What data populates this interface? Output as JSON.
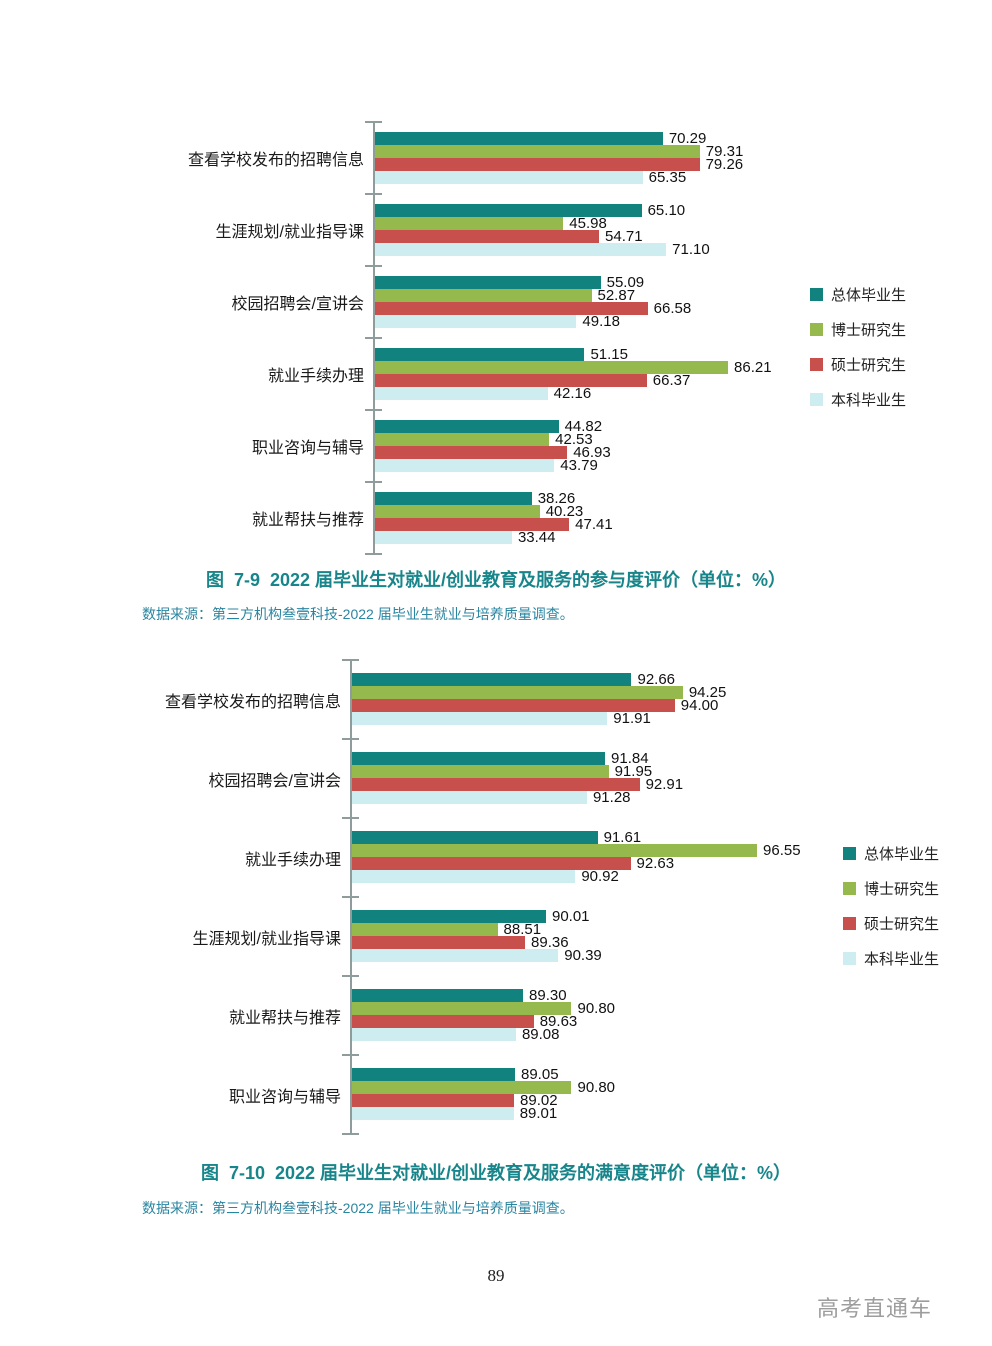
{
  "page": {
    "number": "89",
    "watermark": "高考直通车",
    "background": "#ffffff"
  },
  "chart_data": [
    {
      "type": "bar",
      "orientation": "horizontal",
      "title": "图  7-9  2022 届毕业生对就业/创业教育及服务的参与度评价（单位：%）",
      "source": "数据来源：第三方机构叁壹科技-2022 届毕业生就业与培养质量调查。",
      "categories": [
        "查看学校发布的招聘信息",
        "生涯规划/就业指导课",
        "校园招聘会/宣讲会",
        "就业手续办理",
        "职业咨询与辅导",
        "就业帮扶与推荐"
      ],
      "series": [
        {
          "name": "总体毕业生",
          "color": "#12827E",
          "values": [
            70.29,
            65.1,
            55.09,
            51.15,
            44.82,
            38.26
          ]
        },
        {
          "name": "博士研究生",
          "color": "#95B94D",
          "values": [
            79.31,
            45.98,
            52.87,
            86.21,
            42.53,
            40.23
          ]
        },
        {
          "name": "硕士研究生",
          "color": "#C8504C",
          "values": [
            79.26,
            54.71,
            66.58,
            66.37,
            46.93,
            47.41
          ]
        },
        {
          "name": "本科毕业生",
          "color": "#CDEDF0",
          "values": [
            65.35,
            71.1,
            49.18,
            42.16,
            43.79,
            33.44
          ]
        }
      ],
      "xlim": [
        0,
        105
      ],
      "xlabel": "",
      "ylabel": "",
      "value_labels": true,
      "grid": false,
      "legend_position": "right"
    },
    {
      "type": "bar",
      "orientation": "horizontal",
      "title": "图  7-10  2022 届毕业生对就业/创业教育及服务的满意度评价（单位：%）",
      "source": "数据来源：第三方机构叁壹科技-2022 届毕业生就业与培养质量调查。",
      "categories": [
        "查看学校发布的招聘信息",
        "校园招聘会/宣讲会",
        "就业手续办理",
        "生涯规划/就业指导课",
        "就业帮扶与推荐",
        "职业咨询与辅导"
      ],
      "series": [
        {
          "name": "总体毕业生",
          "color": "#12827E",
          "values": [
            92.66,
            91.84,
            91.61,
            90.01,
            89.3,
            89.05
          ]
        },
        {
          "name": "博士研究生",
          "color": "#95B94D",
          "values": [
            94.25,
            91.95,
            96.55,
            88.51,
            90.8,
            90.8
          ]
        },
        {
          "name": "硕士研究生",
          "color": "#C8504C",
          "values": [
            94.0,
            92.91,
            92.63,
            89.36,
            89.63,
            89.02
          ]
        },
        {
          "name": "本科毕业生",
          "color": "#CDEDF0",
          "values": [
            91.91,
            91.28,
            90.92,
            90.39,
            89.08,
            89.01
          ]
        }
      ],
      "xlim": [
        84,
        98.5
      ],
      "xlabel": "",
      "ylabel": "",
      "value_labels": true,
      "grid": false,
      "legend_position": "right"
    }
  ]
}
